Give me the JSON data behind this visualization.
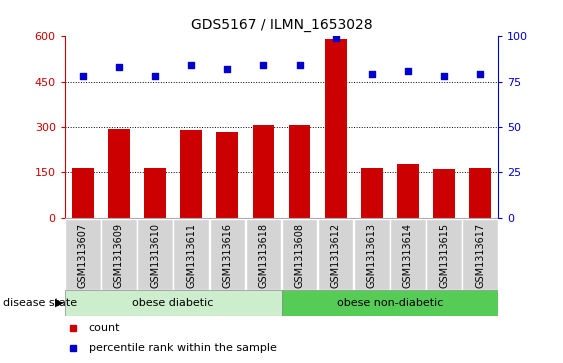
{
  "title": "GDS5167 / ILMN_1653028",
  "samples": [
    "GSM1313607",
    "GSM1313609",
    "GSM1313610",
    "GSM1313611",
    "GSM1313616",
    "GSM1313618",
    "GSM1313608",
    "GSM1313612",
    "GSM1313613",
    "GSM1313614",
    "GSM1313615",
    "GSM1313617"
  ],
  "counts": [
    165,
    293,
    163,
    290,
    285,
    308,
    308,
    590,
    163,
    178,
    160,
    165
  ],
  "percentiles": [
    78,
    83,
    78,
    84,
    82,
    84,
    84,
    99,
    79,
    81,
    78,
    79
  ],
  "ylim_left": [
    0,
    600
  ],
  "ylim_right": [
    0,
    100
  ],
  "yticks_left": [
    0,
    150,
    300,
    450,
    600
  ],
  "yticks_right": [
    0,
    25,
    50,
    75,
    100
  ],
  "bar_color": "#cc0000",
  "dot_color": "#0000cc",
  "group1_label": "obese diabetic",
  "group2_label": "obese non-diabetic",
  "group1_color": "#cceecc",
  "group2_color": "#55cc55",
  "group1_count": 6,
  "group2_count": 6,
  "disease_state_label": "disease state",
  "legend_count_label": "count",
  "legend_pct_label": "percentile rank within the sample",
  "title_fontsize": 10,
  "tick_label_fontsize": 7,
  "xtick_bg": "#d4d4d4"
}
